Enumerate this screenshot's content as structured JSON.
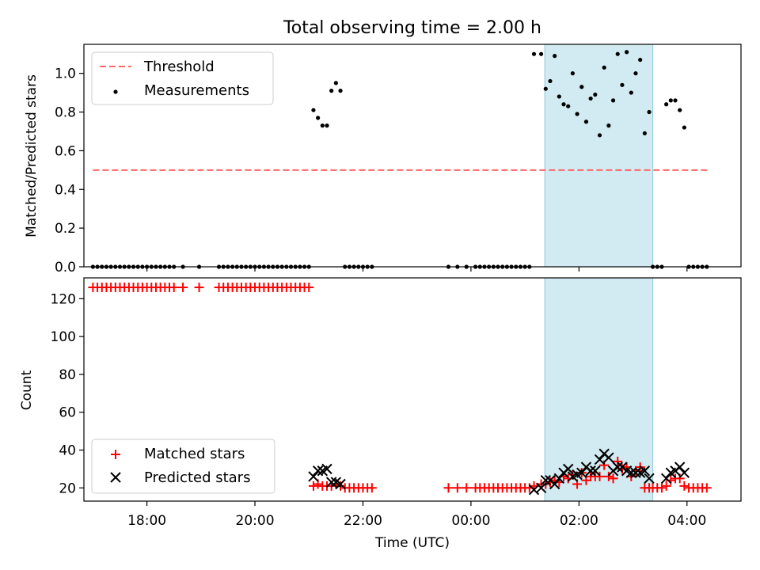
{
  "chart_data": [
    {
      "type": "scatter",
      "title": "Total observing time = 2.00 h",
      "ylabel": "Matched/Predicted stars",
      "xlim": [
        "16:50",
        "05:00"
      ],
      "ylim": [
        0,
        1.15
      ],
      "yticks": [
        "0.0",
        "0.2",
        "0.4",
        "0.6",
        "0.8",
        "1.0"
      ],
      "shaded_span": [
        "01:22",
        "03:22"
      ],
      "shaded_color": "#add8e6",
      "legend": {
        "placement": "upper-left",
        "entries": [
          "Threshold",
          "Measurements"
        ]
      },
      "threshold": {
        "name": "Threshold",
        "y": 0.5,
        "x_range": [
          "17:00",
          "04:25"
        ],
        "color": "#ff6666"
      },
      "series": [
        {
          "name": "Measurements",
          "color": "#000000",
          "points": [
            [
              "17:00",
              0
            ],
            [
              "17:05",
              0
            ],
            [
              "17:10",
              0
            ],
            [
              "17:15",
              0
            ],
            [
              "17:20",
              0
            ],
            [
              "17:25",
              0
            ],
            [
              "17:30",
              0
            ],
            [
              "17:35",
              0
            ],
            [
              "17:40",
              0
            ],
            [
              "17:45",
              0
            ],
            [
              "17:50",
              0
            ],
            [
              "17:55",
              0
            ],
            [
              "18:00",
              0
            ],
            [
              "18:05",
              0
            ],
            [
              "18:10",
              0
            ],
            [
              "18:15",
              0
            ],
            [
              "18:20",
              0
            ],
            [
              "18:25",
              0
            ],
            [
              "18:30",
              0
            ],
            [
              "18:40",
              0
            ],
            [
              "18:58",
              0
            ],
            [
              "19:20",
              0
            ],
            [
              "19:25",
              0
            ],
            [
              "19:30",
              0
            ],
            [
              "19:35",
              0
            ],
            [
              "19:40",
              0
            ],
            [
              "19:45",
              0
            ],
            [
              "19:50",
              0
            ],
            [
              "19:55",
              0
            ],
            [
              "20:00",
              0
            ],
            [
              "20:05",
              0
            ],
            [
              "20:10",
              0
            ],
            [
              "20:15",
              0
            ],
            [
              "20:20",
              0
            ],
            [
              "20:25",
              0
            ],
            [
              "20:30",
              0
            ],
            [
              "20:35",
              0
            ],
            [
              "20:40",
              0
            ],
            [
              "20:45",
              0
            ],
            [
              "20:50",
              0
            ],
            [
              "20:55",
              0
            ],
            [
              "21:00",
              0
            ],
            [
              "21:05",
              0.81
            ],
            [
              "21:10",
              0.77
            ],
            [
              "21:15",
              0.73
            ],
            [
              "21:20",
              0.73
            ],
            [
              "21:25",
              0.91
            ],
            [
              "21:30",
              0.95
            ],
            [
              "21:35",
              0.91
            ],
            [
              "21:40",
              0
            ],
            [
              "21:45",
              0
            ],
            [
              "21:50",
              0
            ],
            [
              "21:55",
              0
            ],
            [
              "22:00",
              0
            ],
            [
              "22:05",
              0
            ],
            [
              "22:10",
              0
            ],
            [
              "23:35",
              0
            ],
            [
              "23:45",
              0
            ],
            [
              "23:55",
              0
            ],
            [
              "00:05",
              0
            ],
            [
              "00:10",
              0
            ],
            [
              "00:15",
              0
            ],
            [
              "00:20",
              0
            ],
            [
              "00:25",
              0
            ],
            [
              "00:30",
              0
            ],
            [
              "00:35",
              0
            ],
            [
              "00:40",
              0
            ],
            [
              "00:45",
              0
            ],
            [
              "00:50",
              0
            ],
            [
              "00:55",
              0
            ],
            [
              "01:00",
              0
            ],
            [
              "01:05",
              0
            ],
            [
              "01:10",
              1.1
            ],
            [
              "01:18",
              1.1
            ],
            [
              "01:23",
              0.92
            ],
            [
              "01:28",
              0.96
            ],
            [
              "01:33",
              1.09
            ],
            [
              "01:38",
              0.88
            ],
            [
              "01:43",
              0.84
            ],
            [
              "01:48",
              0.83
            ],
            [
              "01:53",
              1.0
            ],
            [
              "01:58",
              0.79
            ],
            [
              "02:03",
              0.93
            ],
            [
              "02:08",
              0.75
            ],
            [
              "02:13",
              0.87
            ],
            [
              "02:18",
              0.89
            ],
            [
              "02:23",
              0.68
            ],
            [
              "02:28",
              1.03
            ],
            [
              "02:33",
              0.73
            ],
            [
              "02:38",
              0.86
            ],
            [
              "02:43",
              1.1
            ],
            [
              "02:48",
              0.94
            ],
            [
              "02:53",
              1.11
            ],
            [
              "02:58",
              0.9
            ],
            [
              "03:03",
              1.0
            ],
            [
              "03:08",
              1.07
            ],
            [
              "03:13",
              0.69
            ],
            [
              "03:18",
              0.8
            ],
            [
              "03:22",
              0
            ],
            [
              "03:27",
              0
            ],
            [
              "03:32",
              0
            ],
            [
              "03:37",
              0.84
            ],
            [
              "03:42",
              0.86
            ],
            [
              "03:47",
              0.86
            ],
            [
              "03:52",
              0.81
            ],
            [
              "03:57",
              0.72
            ],
            [
              "04:02",
              0
            ],
            [
              "04:07",
              0
            ],
            [
              "04:12",
              0
            ],
            [
              "04:17",
              0
            ],
            [
              "04:22",
              0
            ]
          ]
        }
      ]
    },
    {
      "type": "scatter",
      "ylabel": "Count",
      "xlabel": "Time (UTC)",
      "xlim": [
        "16:50",
        "05:00"
      ],
      "xticks": [
        "18:00",
        "20:00",
        "22:00",
        "00:00",
        "02:00",
        "04:00"
      ],
      "ylim": [
        13,
        131
      ],
      "yticks": [
        "20",
        "40",
        "60",
        "80",
        "100",
        "120"
      ],
      "shaded_span": [
        "01:22",
        "03:22"
      ],
      "shaded_color": "#add8e6",
      "legend": {
        "placement": "lower-left",
        "entries": [
          "Matched stars",
          "Predicted stars"
        ]
      },
      "series": [
        {
          "name": "Matched stars",
          "marker": "+",
          "color": "#ff0000",
          "points": [
            [
              "17:00",
              126
            ],
            [
              "17:05",
              126
            ],
            [
              "17:10",
              126
            ],
            [
              "17:15",
              126
            ],
            [
              "17:20",
              126
            ],
            [
              "17:25",
              126
            ],
            [
              "17:30",
              126
            ],
            [
              "17:35",
              126
            ],
            [
              "17:40",
              126
            ],
            [
              "17:45",
              126
            ],
            [
              "17:50",
              126
            ],
            [
              "17:55",
              126
            ],
            [
              "18:00",
              126
            ],
            [
              "18:05",
              126
            ],
            [
              "18:10",
              126
            ],
            [
              "18:15",
              126
            ],
            [
              "18:20",
              126
            ],
            [
              "18:25",
              126
            ],
            [
              "18:30",
              126
            ],
            [
              "18:40",
              126
            ],
            [
              "18:58",
              126
            ],
            [
              "19:20",
              126
            ],
            [
              "19:25",
              126
            ],
            [
              "19:30",
              126
            ],
            [
              "19:35",
              126
            ],
            [
              "19:40",
              126
            ],
            [
              "19:45",
              126
            ],
            [
              "19:50",
              126
            ],
            [
              "19:55",
              126
            ],
            [
              "20:00",
              126
            ],
            [
              "20:05",
              126
            ],
            [
              "20:10",
              126
            ],
            [
              "20:15",
              126
            ],
            [
              "20:20",
              126
            ],
            [
              "20:25",
              126
            ],
            [
              "20:30",
              126
            ],
            [
              "20:35",
              126
            ],
            [
              "20:40",
              126
            ],
            [
              "20:45",
              126
            ],
            [
              "20:50",
              126
            ],
            [
              "20:55",
              126
            ],
            [
              "21:00",
              126
            ],
            [
              "21:05",
              21
            ],
            [
              "21:10",
              22
            ],
            [
              "21:15",
              21
            ],
            [
              "21:20",
              21
            ],
            [
              "21:25",
              21
            ],
            [
              "21:30",
              22
            ],
            [
              "21:35",
              21
            ],
            [
              "21:40",
              20
            ],
            [
              "21:45",
              20
            ],
            [
              "21:50",
              20
            ],
            [
              "21:55",
              20
            ],
            [
              "22:00",
              20
            ],
            [
              "22:05",
              20
            ],
            [
              "22:10",
              20
            ],
            [
              "23:35",
              20
            ],
            [
              "23:45",
              20
            ],
            [
              "23:55",
              20
            ],
            [
              "00:05",
              20
            ],
            [
              "00:10",
              20
            ],
            [
              "00:15",
              20
            ],
            [
              "00:20",
              20
            ],
            [
              "00:25",
              20
            ],
            [
              "00:30",
              20
            ],
            [
              "00:35",
              20
            ],
            [
              "00:40",
              20
            ],
            [
              "00:45",
              20
            ],
            [
              "00:50",
              20
            ],
            [
              "00:55",
              20
            ],
            [
              "01:00",
              20
            ],
            [
              "01:05",
              20
            ],
            [
              "01:10",
              21
            ],
            [
              "01:18",
              22
            ],
            [
              "01:23",
              22
            ],
            [
              "01:28",
              23
            ],
            [
              "01:33",
              24
            ],
            [
              "01:38",
              23
            ],
            [
              "01:43",
              26
            ],
            [
              "01:48",
              25
            ],
            [
              "01:53",
              27
            ],
            [
              "01:58",
              22
            ],
            [
              "02:03",
              28
            ],
            [
              "02:08",
              24
            ],
            [
              "02:13",
              26
            ],
            [
              "02:18",
              26
            ],
            [
              "02:23",
              26
            ],
            [
              "02:28",
              32
            ],
            [
              "02:33",
              26
            ],
            [
              "02:38",
              25
            ],
            [
              "02:43",
              34
            ],
            [
              "02:48",
              30
            ],
            [
              "02:53",
              31
            ],
            [
              "02:58",
              26
            ],
            [
              "03:03",
              29
            ],
            [
              "03:08",
              31
            ],
            [
              "03:13",
              20
            ],
            [
              "03:18",
              20
            ],
            [
              "03:22",
              20
            ],
            [
              "03:27",
              20
            ],
            [
              "03:32",
              20
            ],
            [
              "03:37",
              21
            ],
            [
              "03:42",
              24
            ],
            [
              "03:47",
              25
            ],
            [
              "03:52",
              25
            ],
            [
              "03:57",
              21
            ],
            [
              "04:02",
              20
            ],
            [
              "04:07",
              20
            ],
            [
              "04:12",
              20
            ],
            [
              "04:17",
              20
            ],
            [
              "04:22",
              20
            ]
          ]
        },
        {
          "name": "Predicted stars",
          "marker": "x",
          "color": "#000000",
          "points": [
            [
              "21:05",
              26
            ],
            [
              "21:10",
              29
            ],
            [
              "21:15",
              29
            ],
            [
              "21:20",
              30
            ],
            [
              "21:25",
              23
            ],
            [
              "21:30",
              23
            ],
            [
              "21:35",
              22
            ],
            [
              "01:10",
              19
            ],
            [
              "01:18",
              20
            ],
            [
              "01:23",
              24
            ],
            [
              "01:28",
              24
            ],
            [
              "01:33",
              22
            ],
            [
              "01:38",
              25
            ],
            [
              "01:43",
              28
            ],
            [
              "01:48",
              30
            ],
            [
              "01:53",
              26
            ],
            [
              "01:58",
              27
            ],
            [
              "02:03",
              28
            ],
            [
              "02:08",
              31
            ],
            [
              "02:13",
              29
            ],
            [
              "02:18",
              29
            ],
            [
              "02:23",
              35
            ],
            [
              "02:28",
              38
            ],
            [
              "02:33",
              36
            ],
            [
              "02:38",
              29
            ],
            [
              "02:43",
              31
            ],
            [
              "02:48",
              31
            ],
            [
              "02:53",
              29
            ],
            [
              "02:58",
              28
            ],
            [
              "03:03",
              28
            ],
            [
              "03:08",
              28
            ],
            [
              "03:13",
              29
            ],
            [
              "03:18",
              25
            ],
            [
              "03:37",
              25
            ],
            [
              "03:42",
              28
            ],
            [
              "03:47",
              29
            ],
            [
              "03:52",
              31
            ],
            [
              "03:57",
              28
            ]
          ]
        }
      ]
    }
  ]
}
